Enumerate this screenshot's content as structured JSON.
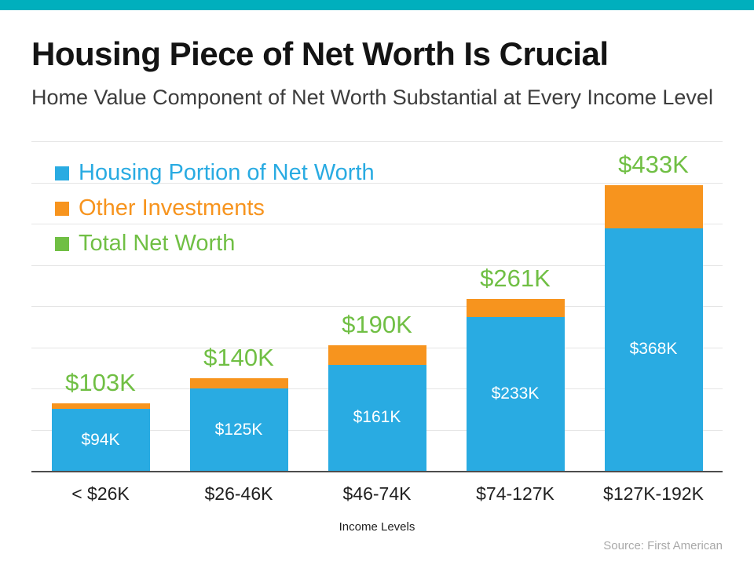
{
  "accent": {
    "top_bar_color": "#00AFBD"
  },
  "header": {
    "title": "Housing Piece of Net Worth Is Crucial",
    "subtitle": "Home Value Component of Net Worth Substantial at Every Income Level"
  },
  "chart_data": {
    "type": "bar",
    "stacked": true,
    "title": "Housing Piece of Net Worth Is Crucial",
    "subtitle": "Home Value Component of Net Worth Substantial at Every Income Level",
    "categories": [
      "< $26K",
      "$26-46K",
      "$46-74K",
      "$74-127K",
      "$127K-192K"
    ],
    "series": [
      {
        "name": "Housing Portion of Net Worth",
        "color": "#29ABE2",
        "values": [
          94,
          125,
          161,
          233,
          368
        ]
      },
      {
        "name": "Other Investments",
        "color": "#F7941E",
        "values": [
          9,
          15,
          29,
          28,
          65
        ]
      }
    ],
    "totals": [
      103,
      140,
      190,
      261,
      433
    ],
    "total_labels": [
      "$103K",
      "$140K",
      "$190K",
      "$261K",
      "$433K"
    ],
    "housing_labels": [
      "$94K",
      "$125K",
      "$161K",
      "$233K",
      "$368K"
    ],
    "legend": [
      {
        "label": "Housing Portion of Net Worth",
        "color": "#29ABE2"
      },
      {
        "label": "Other Investments",
        "color": "#F7941E"
      },
      {
        "label": "Total Net Worth",
        "color": "#70BF44"
      }
    ],
    "legend_position": "top-left",
    "grid": true,
    "xlabel": "Income Levels",
    "ylabel": "",
    "ylim": [
      0,
      500
    ]
  },
  "footer": {
    "source": "Source: First American"
  }
}
